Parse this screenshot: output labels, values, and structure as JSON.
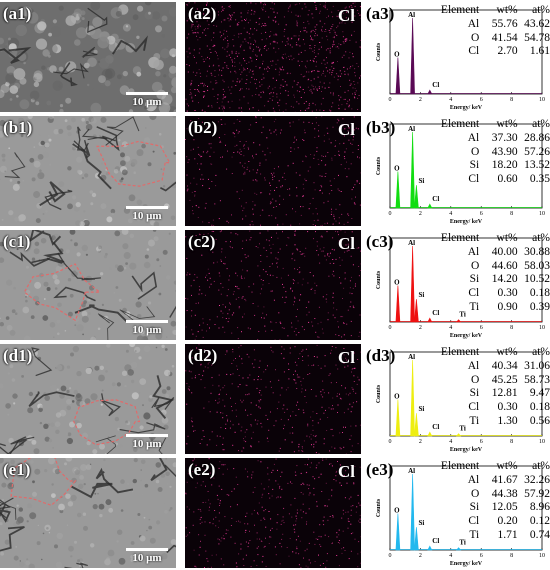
{
  "rows": [
    {
      "sem_label": "(a1)",
      "map_label": "(a2)",
      "eds_label": "(a3)",
      "element_map": "Cl",
      "scale": "10 μm",
      "peak_color": "#5a0a55",
      "peak_labels": [
        "O",
        "Al",
        "Cl"
      ],
      "table_header": [
        "Element",
        "wt%",
        "at%"
      ],
      "table": [
        [
          "Al",
          "55.76",
          "43.62"
        ],
        [
          "O",
          "41.54",
          "54.78"
        ],
        [
          "Cl",
          "2.70",
          "1.61"
        ]
      ],
      "axis": {
        "ylabel": "Counts",
        "xlabel": "Energy/ keV",
        "ticks": [
          "0",
          "2",
          "4",
          "6",
          "8",
          "10"
        ]
      }
    },
    {
      "sem_label": "(b1)",
      "map_label": "(b2)",
      "eds_label": "(b3)",
      "element_map": "Cl",
      "scale": "10 μm",
      "peak_color": "#11dd11",
      "peak_labels": [
        "O",
        "Al",
        "Si",
        "Cl"
      ],
      "table_header": [
        "Element",
        "wt%",
        "at%"
      ],
      "table": [
        [
          "Al",
          "37.30",
          "28.86"
        ],
        [
          "O",
          "43.90",
          "57.26"
        ],
        [
          "Si",
          "18.20",
          "13.52"
        ],
        [
          "Cl",
          "0.60",
          "0.35"
        ]
      ],
      "axis": {
        "ylabel": "Counts",
        "xlabel": "Energy/ keV",
        "ticks": [
          "0",
          "2",
          "4",
          "6",
          "8",
          "10"
        ]
      }
    },
    {
      "sem_label": "(c1)",
      "map_label": "(c2)",
      "eds_label": "(c3)",
      "element_map": "Cl",
      "scale": "10 μm",
      "peak_color": "#ee1111",
      "peak_labels": [
        "O",
        "Al",
        "Si",
        "Cl",
        "Ti"
      ],
      "table_header": [
        "Element",
        "wt%",
        "at%"
      ],
      "table": [
        [
          "Al",
          "40.00",
          "30.88"
        ],
        [
          "O",
          "44.60",
          "58.03"
        ],
        [
          "Si",
          "14.20",
          "10.52"
        ],
        [
          "Cl",
          "0.30",
          "0.18"
        ],
        [
          "Ti",
          "0.90",
          "0.39"
        ]
      ],
      "axis": {
        "ylabel": "Counts",
        "xlabel": "Energy/ keV",
        "ticks": [
          "0",
          "2",
          "4",
          "6",
          "8",
          "10"
        ]
      }
    },
    {
      "sem_label": "(d1)",
      "map_label": "(d2)",
      "eds_label": "(d3)",
      "element_map": "Cl",
      "scale": "10 μm",
      "peak_color": "#eeee11",
      "peak_labels": [
        "O",
        "Al",
        "Si",
        "Cl",
        "Ti"
      ],
      "table_header": [
        "Element",
        "wt%",
        "at%"
      ],
      "table": [
        [
          "Al",
          "40.34",
          "31.06"
        ],
        [
          "O",
          "45.25",
          "58.73"
        ],
        [
          "Si",
          "12.81",
          "9.47"
        ],
        [
          "Cl",
          "0.30",
          "0.18"
        ],
        [
          "Ti",
          "1.30",
          "0.56"
        ]
      ],
      "axis": {
        "ylabel": "Counts",
        "xlabel": "Energy/ keV",
        "ticks": [
          "0",
          "2",
          "4",
          "6",
          "8",
          "10"
        ]
      }
    },
    {
      "sem_label": "(e1)",
      "map_label": "(e2)",
      "eds_label": "(e3)",
      "element_map": "Cl",
      "scale": "10 μm",
      "peak_color": "#22b8ee",
      "peak_labels": [
        "O",
        "Al",
        "Si",
        "Cl",
        "Ti"
      ],
      "table_header": [
        "Element",
        "wt%",
        "at%"
      ],
      "table": [
        [
          "Al",
          "41.67",
          "32.26"
        ],
        [
          "O",
          "44.38",
          "57.92"
        ],
        [
          "Si",
          "12.05",
          "8.96"
        ],
        [
          "Cl",
          "0.20",
          "0.12"
        ],
        [
          "Ti",
          "1.71",
          "0.74"
        ]
      ],
      "axis": {
        "ylabel": "Counts",
        "xlabel": "Energy/ keV",
        "ticks": [
          "0",
          "2",
          "4",
          "6",
          "8",
          "10"
        ]
      }
    }
  ]
}
